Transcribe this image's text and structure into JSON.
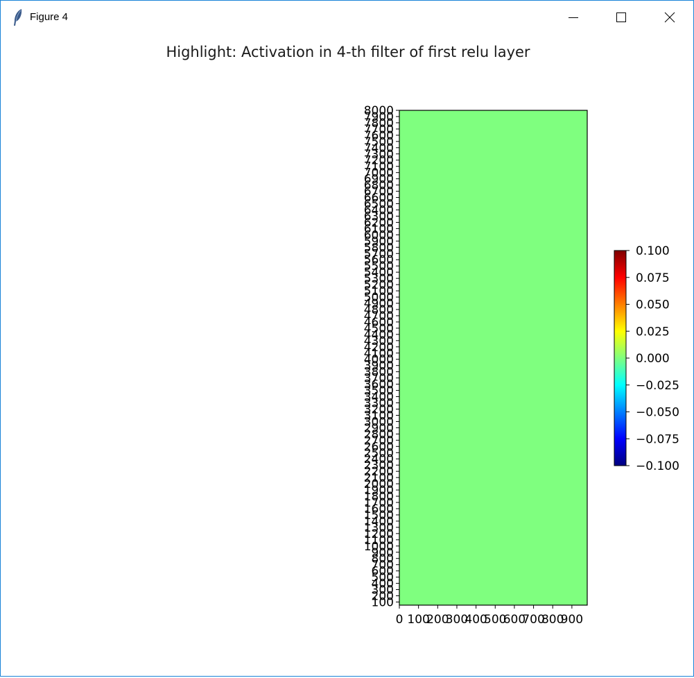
{
  "window": {
    "title": "Figure 4",
    "controls": [
      "minimize",
      "maximize",
      "close"
    ],
    "app_icon": "feather-icon"
  },
  "chart_data": {
    "type": "heatmap",
    "title": "Highlight: Activation in 4-th filter of first relu layer",
    "xlabel": "",
    "ylabel": "",
    "x_ticks": [
      "0",
      "100",
      "200",
      "300",
      "400",
      "500",
      "600",
      "700",
      "800",
      "900"
    ],
    "x_range": [
      0,
      980
    ],
    "y_ticks": [
      "100",
      "200",
      "300",
      "400",
      "500",
      "600",
      "700",
      "800",
      "900",
      "1000",
      "1100",
      "1200",
      "1300",
      "1400",
      "1500",
      "1600",
      "1700",
      "1800",
      "1900",
      "2000",
      "2100",
      "2200",
      "2300",
      "2400",
      "2500",
      "2600",
      "2700",
      "2800",
      "2900",
      "3000",
      "3100",
      "3200",
      "3300",
      "3400",
      "3500",
      "3600",
      "3700",
      "3800",
      "3900",
      "4000",
      "4100",
      "4200",
      "4300",
      "4400",
      "4500",
      "4600",
      "4700",
      "4800",
      "4900",
      "5000",
      "5100",
      "5200",
      "5300",
      "5400",
      "5500",
      "5600",
      "5700",
      "5800",
      "5900",
      "6000",
      "6100",
      "6200",
      "6300",
      "6400",
      "6500",
      "6600",
      "6700",
      "6800",
      "6900",
      "7000",
      "7100",
      "7200",
      "7300",
      "7400",
      "7500",
      "7600",
      "7700",
      "7800",
      "7900",
      "8000"
    ],
    "y_range": [
      50,
      8000
    ],
    "value": 0.0,
    "cell_color": "#7fff7f",
    "colormap": "jet",
    "colorbar": {
      "min": -0.1,
      "max": 0.1,
      "ticks": [
        "0.100",
        "0.075",
        "0.050",
        "0.025",
        "0.000",
        "−0.025",
        "−0.050",
        "−0.075",
        "−0.100"
      ],
      "tick_values": [
        0.1,
        0.075,
        0.05,
        0.025,
        0.0,
        -0.025,
        -0.05,
        -0.075,
        -0.1
      ],
      "stops": [
        "#00007f",
        "#0000ff",
        "#007fff",
        "#00ffff",
        "#7fff7f",
        "#ffff00",
        "#ff7f00",
        "#ff0000",
        "#7f0000"
      ]
    },
    "grid": false
  }
}
